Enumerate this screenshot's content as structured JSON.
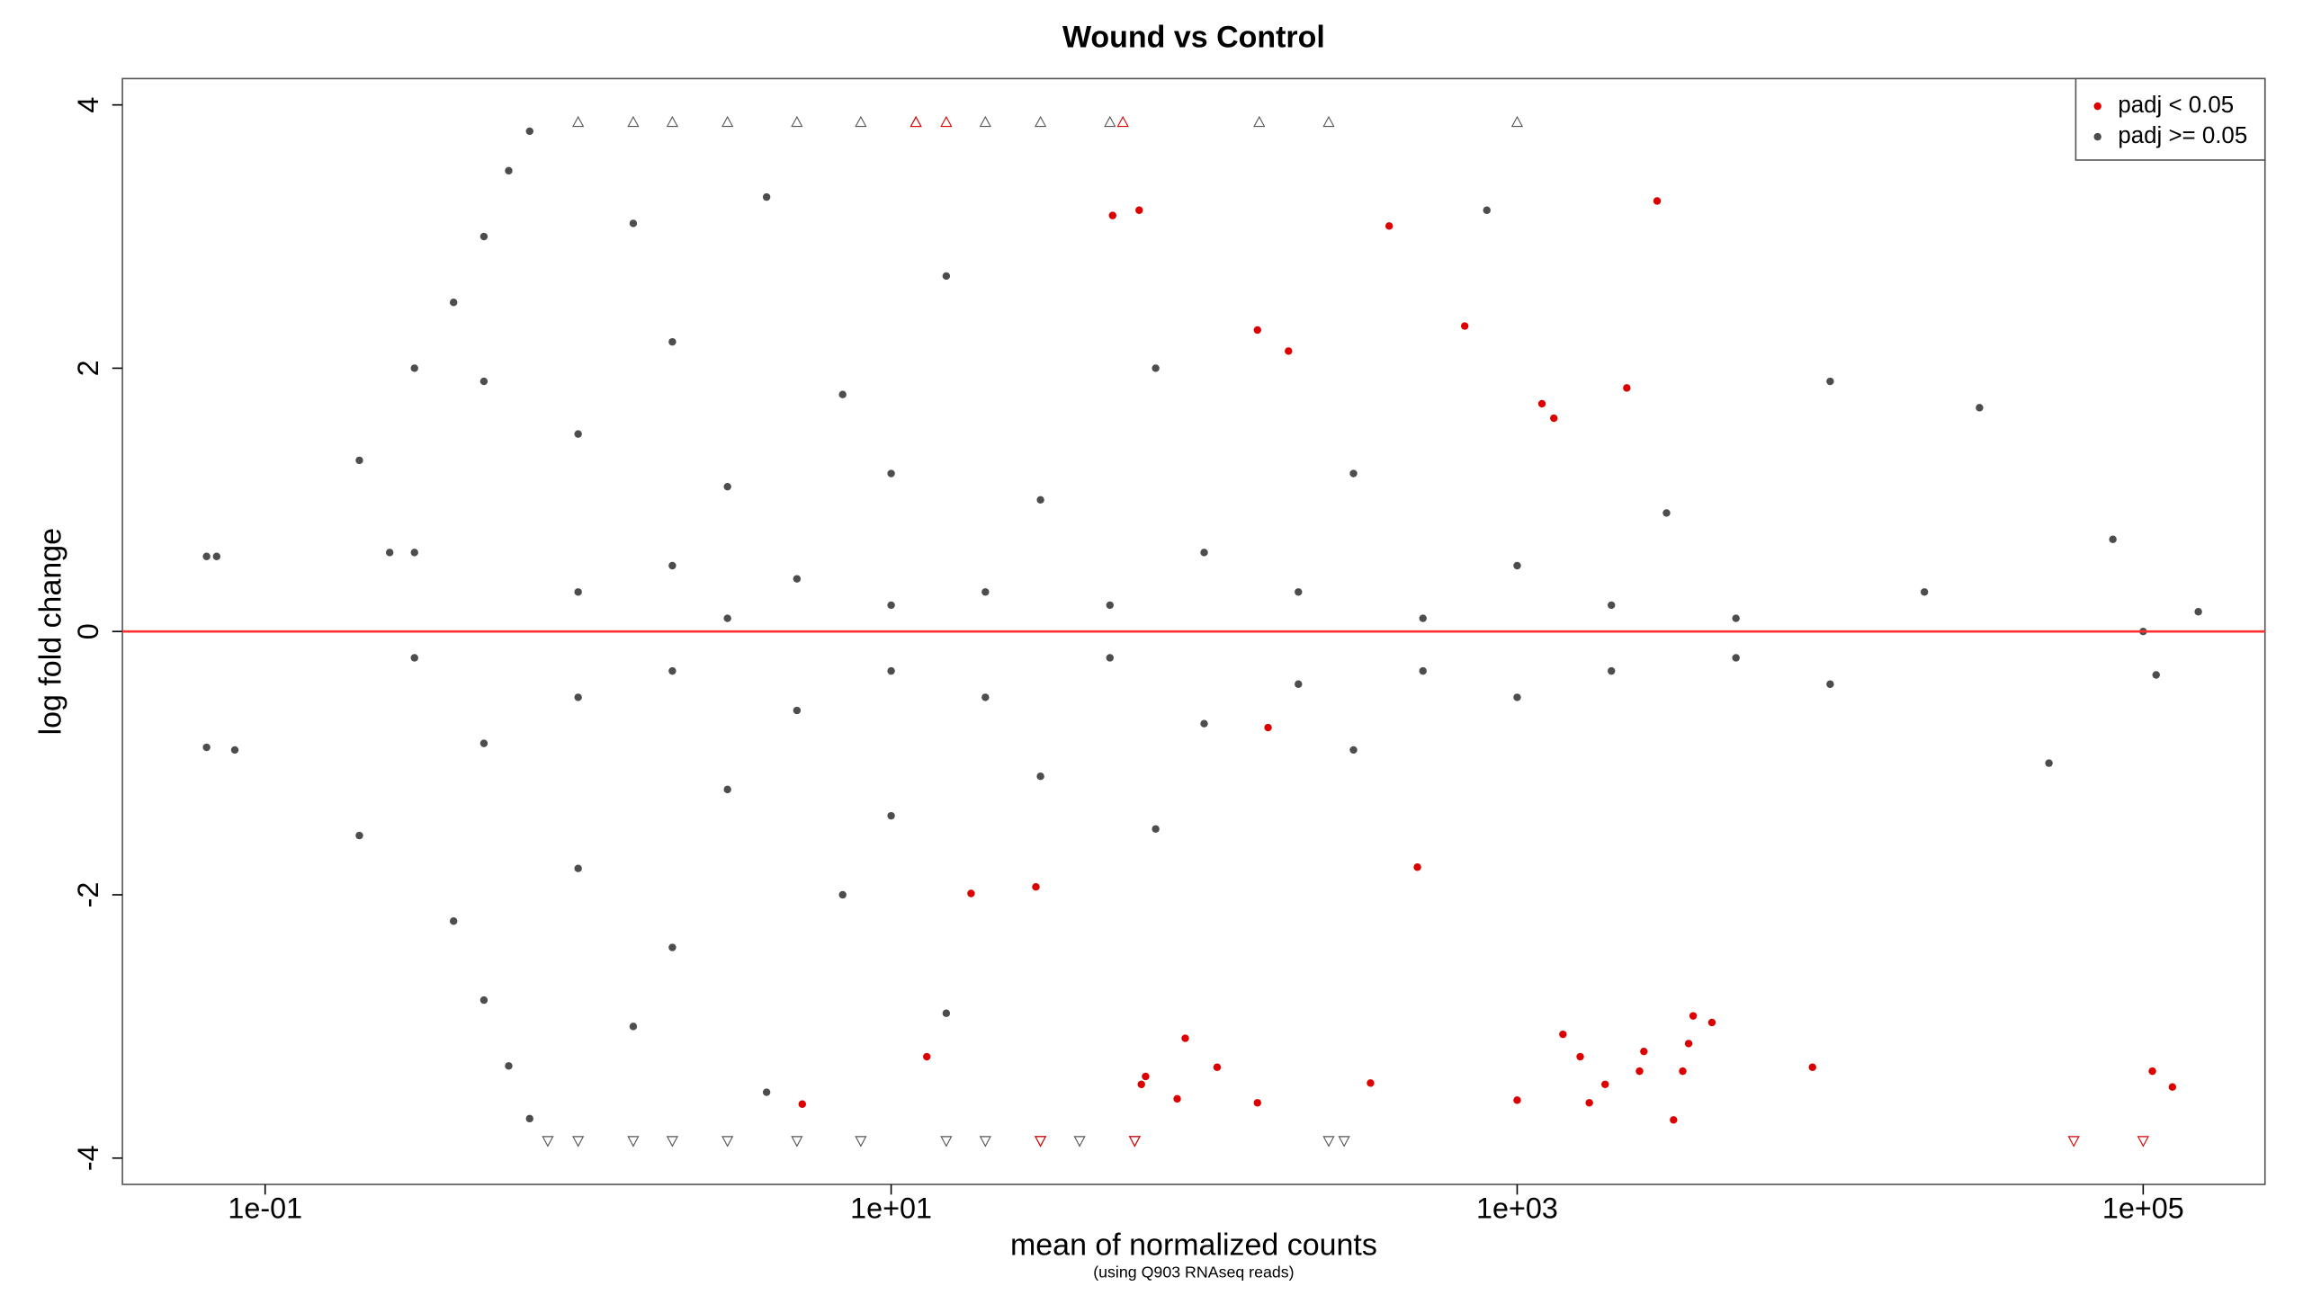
{
  "chart_data": {
    "type": "scatter",
    "title": "Wound vs Control",
    "x_label": "mean of normalized counts",
    "subtitle": "(using Q903 RNAseq reads)",
    "y_label": "log fold change",
    "x_log": true,
    "xlim": [
      0.035,
      245000
    ],
    "ylim": [
      -4.2,
      4.2
    ],
    "xticks": [
      {
        "value": 0.1,
        "label": "1e-01"
      },
      {
        "value": 10,
        "label": "1e+01"
      },
      {
        "value": 1000,
        "label": "1e+03"
      },
      {
        "value": 100000,
        "label": "1e+05"
      }
    ],
    "yticks": [
      -4,
      -2,
      0,
      2,
      4
    ],
    "hline": 0,
    "hline_color": "#ff3030",
    "legend": "topright",
    "series": [
      {
        "name": "padj < 0.05",
        "color": "#dd0000",
        "marker": "circle",
        "x": [
          51,
          62,
          390,
          2800,
          148,
          186,
          680,
          2240,
          1200,
          1310,
          160,
          480,
          18,
          29,
          13,
          5.2,
          63,
          65,
          82,
          87,
          110,
          148,
          340,
          1000,
          1400,
          1590,
          1700,
          1910,
          2460,
          2540,
          3160,
          3380,
          3530,
          3650,
          4190,
          8780,
          107000,
          124000
        ],
        "values": [
          3.16,
          3.2,
          3.08,
          3.27,
          2.29,
          2.13,
          2.32,
          1.85,
          1.73,
          1.62,
          -0.73,
          -1.79,
          -1.99,
          -1.94,
          -3.23,
          -3.59,
          -3.44,
          -3.38,
          -3.55,
          -3.09,
          -3.31,
          -3.58,
          -3.43,
          -3.56,
          -3.06,
          -3.23,
          -3.58,
          -3.44,
          -3.34,
          -3.19,
          -3.71,
          -3.34,
          -3.13,
          -2.92,
          -2.97,
          -3.31,
          -3.34,
          -3.46
        ]
      },
      {
        "name": "padj >= 0.05",
        "color": "#4d4d4d",
        "marker": "circle",
        "x": [
          0.065,
          0.07,
          0.065,
          0.08,
          0.2,
          0.2,
          0.25,
          0.3,
          0.3,
          0.4,
          0.5,
          0.6,
          0.7,
          0.4,
          0.5,
          0.6,
          0.7,
          0.5,
          0.5,
          0.3,
          1,
          1,
          1,
          1,
          1.5,
          1.5,
          2,
          2,
          2,
          2,
          3,
          3,
          3,
          4,
          4,
          5,
          5,
          7,
          7,
          10,
          10,
          10,
          10,
          15,
          15,
          20,
          20,
          30,
          30,
          50,
          50,
          70,
          70,
          100,
          100,
          200,
          200,
          300,
          300,
          500,
          500,
          800,
          1000,
          1000,
          2000,
          2000,
          3000,
          5000,
          5000,
          10000,
          10000,
          20000,
          30000,
          50000,
          80000,
          100000,
          110000,
          150000
        ],
        "values": [
          0.57,
          0.57,
          -0.88,
          -0.9,
          1.3,
          -1.55,
          0.6,
          -0.2,
          2,
          2.5,
          3,
          3.5,
          3.8,
          -2.2,
          -2.8,
          -3.3,
          -3.7,
          1.9,
          -0.85,
          0.6,
          0.3,
          -0.5,
          1.5,
          -1.8,
          3.1,
          -3.0,
          0.5,
          -0.3,
          2.2,
          -2.4,
          0.1,
          1.1,
          -1.2,
          3.3,
          -3.5,
          0.4,
          -0.6,
          1.8,
          -2.0,
          0.2,
          -0.3,
          1.2,
          -1.4,
          2.7,
          -2.9,
          0.3,
          -0.5,
          1.0,
          -1.1,
          0.2,
          -0.2,
          2.0,
          -1.5,
          0.6,
          -0.7,
          0.3,
          -0.4,
          1.2,
          -0.9,
          0.1,
          -0.3,
          3.2,
          0.5,
          -0.5,
          0.2,
          -0.3,
          0.9,
          0.1,
          -0.2,
          1.9,
          -0.4,
          0.3,
          1.7,
          -1.0,
          0.7,
          0,
          -0.33,
          0.15
        ]
      },
      {
        "color": "#555555",
        "marker": "triangle-up",
        "x": [
          1,
          1.5,
          2,
          3,
          5,
          8,
          12,
          20,
          30,
          50,
          150,
          250,
          1000
        ],
        "values": [
          3.87,
          3.87,
          3.87,
          3.87,
          3.87,
          3.87,
          3.87,
          3.87,
          3.87,
          3.87,
          3.87,
          3.87,
          3.87
        ]
      },
      {
        "color": "#dd0000",
        "marker": "triangle-up",
        "x": [
          12,
          15,
          55
        ],
        "values": [
          3.87,
          3.87,
          3.87
        ]
      },
      {
        "color": "#555555",
        "marker": "triangle-down",
        "x": [
          0.8,
          1,
          1.5,
          2,
          3,
          5,
          8,
          15,
          20,
          30,
          40,
          60,
          250,
          280
        ],
        "values": [
          -3.87,
          -3.87,
          -3.87,
          -3.87,
          -3.87,
          -3.87,
          -3.87,
          -3.87,
          -3.87,
          -3.87,
          -3.87,
          -3.87,
          -3.87,
          -3.87
        ]
      },
      {
        "color": "#dd0000",
        "marker": "triangle-down",
        "x": [
          30,
          60,
          60000,
          100000
        ],
        "values": [
          -3.87,
          -3.87,
          -3.87,
          -3.87
        ]
      }
    ]
  }
}
